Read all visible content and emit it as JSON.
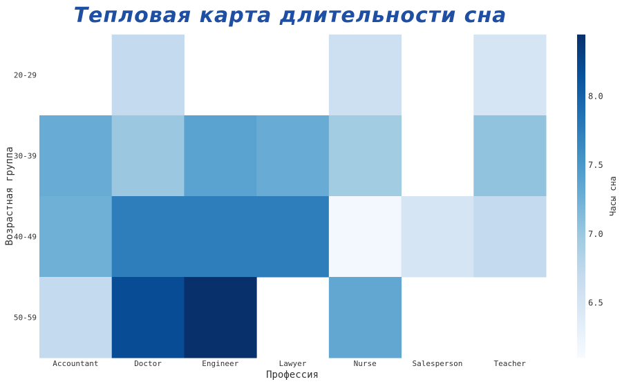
{
  "chart_data": {
    "type": "heatmap",
    "title": "Тепловая карта длительности сна",
    "xlabel": "Профессия",
    "ylabel": "Возрастная группа",
    "colorbar_title": "Часы сна",
    "colorscale": "Blues",
    "colorbar_range": [
      6.1,
      8.45
    ],
    "colorbar_ticks": [
      "6.5",
      "7.0",
      "7.5",
      "8.0"
    ],
    "x_categories": [
      "Accountant",
      "Doctor",
      "Engineer",
      "Lawyer",
      "Nurse",
      "Salesperson",
      "Teacher"
    ],
    "y_categories": [
      "20-29",
      "30-39",
      "40-49",
      "50-59"
    ],
    "z": [
      [
        null,
        6.7,
        null,
        null,
        6.6,
        null,
        6.5
      ],
      [
        7.3,
        7.0,
        7.4,
        7.3,
        6.95,
        null,
        7.05
      ],
      [
        7.25,
        7.75,
        7.75,
        7.75,
        6.15,
        6.5,
        6.7
      ],
      [
        6.7,
        8.2,
        8.45,
        null,
        7.35,
        null,
        null
      ]
    ]
  }
}
